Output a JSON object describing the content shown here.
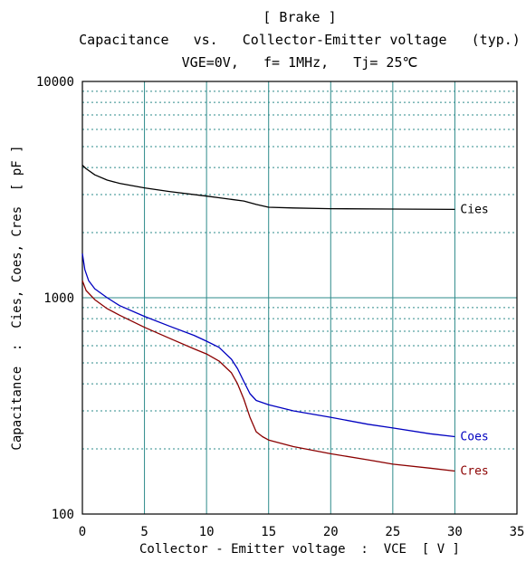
{
  "chart_data": {
    "type": "line",
    "title": "[ Brake ]",
    "subtitle": "Capacitance   vs.   Collector-Emitter voltage   (typ.)",
    "conditions": "VGE=0V,   f= 1MHz,   Tj= 25℃",
    "xlabel": "Collector - Emitter voltage  :  VCE  [ V ]",
    "ylabel": "Capacitance  :  Cies, Coes, Cres  [ pF ]",
    "xlim": [
      0,
      35
    ],
    "ylim": [
      100,
      10000
    ],
    "yscale": "log",
    "x_ticks": [
      "0",
      "5",
      "10",
      "15",
      "20",
      "25",
      "30",
      "35"
    ],
    "y_ticks": [
      "100",
      "1000",
      "10000"
    ],
    "grid": true,
    "series": [
      {
        "name": "Cies",
        "color": "#000000",
        "x": [
          0,
          0.3,
          1,
          2,
          3,
          5,
          7,
          10,
          11,
          12,
          13,
          14,
          15,
          17,
          20,
          25,
          30
        ],
        "values": [
          4100,
          3950,
          3700,
          3500,
          3380,
          3220,
          3100,
          2950,
          2900,
          2850,
          2800,
          2700,
          2620,
          2600,
          2580,
          2570,
          2560
        ]
      },
      {
        "name": "Coes",
        "color": "#0000c0",
        "x": [
          0,
          0.2,
          0.5,
          1,
          2,
          3,
          5,
          7,
          9,
          10,
          11,
          12,
          12.5,
          13,
          13.5,
          14,
          15,
          17,
          20,
          23,
          25,
          28,
          30
        ],
        "values": [
          1600,
          1350,
          1200,
          1100,
          1000,
          920,
          820,
          740,
          670,
          630,
          590,
          520,
          470,
          410,
          360,
          335,
          320,
          300,
          280,
          260,
          250,
          235,
          228
        ]
      },
      {
        "name": "Cres",
        "color": "#8b0000",
        "x": [
          0,
          0.3,
          1,
          2,
          3,
          5,
          7,
          9,
          10,
          11,
          12,
          12.5,
          13,
          13.5,
          14,
          14.5,
          15,
          17,
          20,
          23,
          25,
          28,
          30
        ],
        "values": [
          1200,
          1080,
          980,
          890,
          830,
          730,
          650,
          580,
          550,
          510,
          450,
          400,
          340,
          280,
          240,
          228,
          220,
          205,
          190,
          178,
          170,
          163,
          158
        ]
      }
    ]
  }
}
